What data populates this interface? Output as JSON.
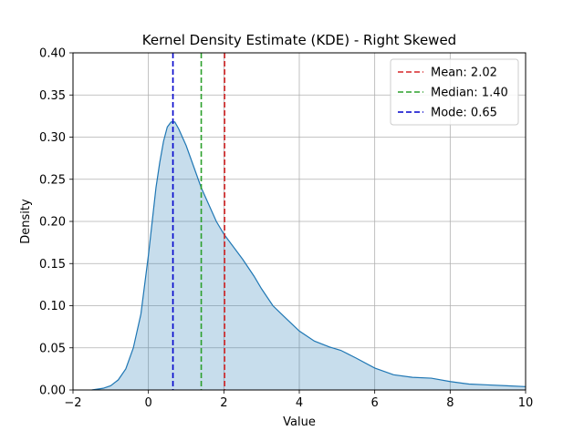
{
  "chart_data": {
    "type": "area",
    "title": "Kernel Density Estimate (KDE) - Right Skewed",
    "xlabel": "Value",
    "ylabel": "Density",
    "xlim": [
      -2,
      10
    ],
    "ylim": [
      0,
      0.4
    ],
    "x_ticks": [
      -2,
      0,
      2,
      4,
      6,
      8,
      10
    ],
    "x_tick_labels": [
      "−2",
      "0",
      "2",
      "4",
      "6",
      "8",
      "10"
    ],
    "y_ticks": [
      0,
      0.05,
      0.1,
      0.15,
      0.2,
      0.25,
      0.3,
      0.35,
      0.4
    ],
    "y_tick_labels": [
      "0.00",
      "0.05",
      "0.10",
      "0.15",
      "0.20",
      "0.25",
      "0.30",
      "0.35",
      "0.40"
    ],
    "grid": true,
    "legend_position": "top-right",
    "series": [
      {
        "kind": "kde",
        "color": "#1f77b4",
        "fill_color": "#1f77b4",
        "fill_opacity": 0.25,
        "points": [
          [
            -1.5,
            0.0
          ],
          [
            -1.2,
            0.002
          ],
          [
            -1.0,
            0.005
          ],
          [
            -0.8,
            0.012
          ],
          [
            -0.6,
            0.025
          ],
          [
            -0.4,
            0.05
          ],
          [
            -0.2,
            0.09
          ],
          [
            0.0,
            0.16
          ],
          [
            0.1,
            0.2
          ],
          [
            0.2,
            0.24
          ],
          [
            0.3,
            0.27
          ],
          [
            0.4,
            0.295
          ],
          [
            0.5,
            0.312
          ],
          [
            0.6,
            0.318
          ],
          [
            0.7,
            0.318
          ],
          [
            0.8,
            0.31
          ],
          [
            1.0,
            0.29
          ],
          [
            1.2,
            0.265
          ],
          [
            1.4,
            0.24
          ],
          [
            1.6,
            0.22
          ],
          [
            1.8,
            0.2
          ],
          [
            2.0,
            0.185
          ],
          [
            2.2,
            0.173
          ],
          [
            2.5,
            0.155
          ],
          [
            2.8,
            0.135
          ],
          [
            3.0,
            0.12
          ],
          [
            3.3,
            0.1
          ],
          [
            3.6,
            0.087
          ],
          [
            4.0,
            0.07
          ],
          [
            4.4,
            0.058
          ],
          [
            4.8,
            0.051
          ],
          [
            5.1,
            0.047
          ],
          [
            5.5,
            0.038
          ],
          [
            6.0,
            0.026
          ],
          [
            6.5,
            0.018
          ],
          [
            7.0,
            0.015
          ],
          [
            7.5,
            0.014
          ],
          [
            8.0,
            0.01
          ],
          [
            8.5,
            0.007
          ],
          [
            9.0,
            0.006
          ],
          [
            9.5,
            0.005
          ],
          [
            10.0,
            0.004
          ]
        ]
      }
    ],
    "reference_lines": [
      {
        "label": "Mean: 2.02",
        "x": 2.02,
        "color": "#d62728",
        "style": "dashed"
      },
      {
        "label": "Median: 1.40",
        "x": 1.4,
        "color": "#2ca02c",
        "style": "dashed"
      },
      {
        "label": "Mode: 0.65",
        "x": 0.65,
        "color": "#0000cc",
        "style": "dashed"
      }
    ],
    "legend": [
      {
        "label": "Mean: 2.02",
        "color": "#d62728"
      },
      {
        "label": "Median: 1.40",
        "color": "#2ca02c"
      },
      {
        "label": "Mode: 0.65",
        "color": "#0000cc"
      }
    ]
  }
}
